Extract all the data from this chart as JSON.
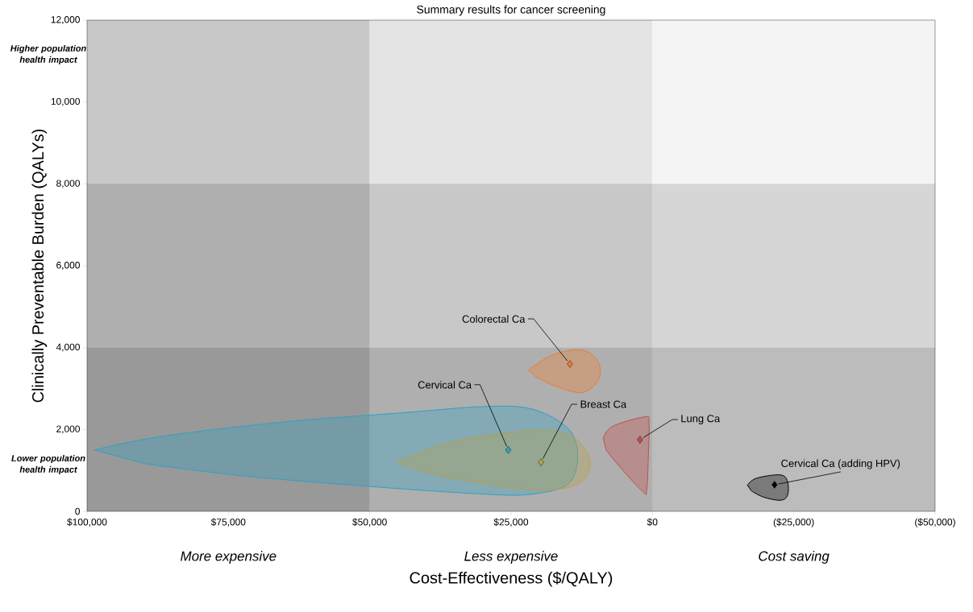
{
  "chart_data": {
    "type": "scatter",
    "title": "Summary results for cancer screening",
    "xlabel": "Cost-Effectiveness ($/QALY)",
    "ylabel": "Clinically Preventable Burden (QALYs)",
    "xlim": [
      100000,
      -50000
    ],
    "ylim": [
      0,
      12000
    ],
    "xticks": [
      {
        "value": 100000,
        "label": "$100,000"
      },
      {
        "value": 75000,
        "label": "$75,000"
      },
      {
        "value": 50000,
        "label": "$50,000"
      },
      {
        "value": 25000,
        "label": "$25,000"
      },
      {
        "value": 0,
        "label": "$0"
      },
      {
        "value": -25000,
        "label": "($25,000)"
      },
      {
        "value": -50000,
        "label": "($50,000)"
      }
    ],
    "yticks": [
      0,
      {
        "value": 2000,
        "label": "2,000"
      },
      {
        "value": 4000,
        "label": "4,000"
      },
      {
        "value": 6000,
        "label": "6,000"
      },
      {
        "value": 8000,
        "label": "8,000"
      },
      {
        "value": 10000,
        "label": "10,000"
      },
      {
        "value": 12000,
        "label": "12,000"
      }
    ],
    "marker": "diamond",
    "bands": [
      {
        "axis": "x",
        "from": 100000,
        "to": 50000,
        "label": "More expensive",
        "color": "#c8c8c8"
      },
      {
        "axis": "x",
        "from": 50000,
        "to": 0,
        "label": "Less expensive",
        "color": "#e4e4e4"
      },
      {
        "axis": "x",
        "from": 0,
        "to": -50000,
        "label": "Cost saving",
        "color": "#f4f4f4"
      },
      {
        "axis": "y",
        "from": 0,
        "to": 8000,
        "color": "#000000"
      },
      {
        "axis": "y",
        "from": 0,
        "to": 4000,
        "color": "#000000"
      }
    ],
    "annotations": [
      "Higher population health impact",
      "Lower population health impact"
    ],
    "series": [
      {
        "type": "area",
        "marker": "none",
        "color": "#ed7d31",
        "x": [
          21900,
          18000,
          13200,
          10400,
          9200,
          10100,
          12700,
          17000,
          20800
        ],
        "values": [
          3450,
          3800,
          3950,
          3800,
          3450,
          3100,
          2900,
          3050,
          3300
        ]
      },
      {
        "type": "area",
        "marker": "none",
        "color": "#31a1c0",
        "x": [
          98700,
          86900,
          65500,
          44100,
          29800,
          21300,
          14900,
          13200,
          14900,
          21300,
          29800,
          51200,
          72600,
          89700
        ],
        "values": [
          1500,
          1830,
          2180,
          2410,
          2560,
          2500,
          2020,
          1350,
          670,
          420,
          420,
          620,
          870,
          1160
        ]
      },
      {
        "type": "area",
        "marker": "none",
        "color": "#b8a04c",
        "x": [
          45100,
          37000,
          27400,
          18900,
          13700,
          11000,
          13200,
          20300,
          32300,
          39400
        ],
        "values": [
          1190,
          1640,
          1890,
          1970,
          1790,
          1190,
          670,
          520,
          730,
          920
        ]
      },
      {
        "type": "area",
        "marker": "none",
        "color": "#c0504d",
        "x": [
          8700,
          7000,
          1300,
          600,
          700,
          1000,
          1700,
          5600,
          8200
        ],
        "values": [
          1790,
          2080,
          2310,
          2160,
          1450,
          520,
          480,
          1060,
          1500
        ]
      },
      {
        "type": "area",
        "marker": "none",
        "color": "#000000",
        "x": [
          -16800,
          -18400,
          -22600,
          -23900,
          -23900,
          -22600,
          -19600,
          -17500
        ],
        "values": [
          640,
          810,
          890,
          730,
          390,
          270,
          350,
          500
        ]
      },
      {
        "name": "Colorectal Ca",
        "color": "#ed7d31",
        "x": [
          14600
        ],
        "values": [
          3600
        ]
      },
      {
        "name": "Cervical Ca",
        "color": "#31a1c0",
        "x": [
          25500
        ],
        "values": [
          1500
        ]
      },
      {
        "name": "Breast Ca",
        "color": "#b8a04c",
        "x": [
          19700
        ],
        "values": [
          1200
        ]
      },
      {
        "name": "Lung Ca",
        "color": "#c0504d",
        "x": [
          2200
        ],
        "values": [
          1750
        ]
      },
      {
        "name": "Cervical Ca (adding HPV)",
        "color": "#000000",
        "x": [
          -21600
        ],
        "values": [
          650
        ]
      }
    ]
  }
}
